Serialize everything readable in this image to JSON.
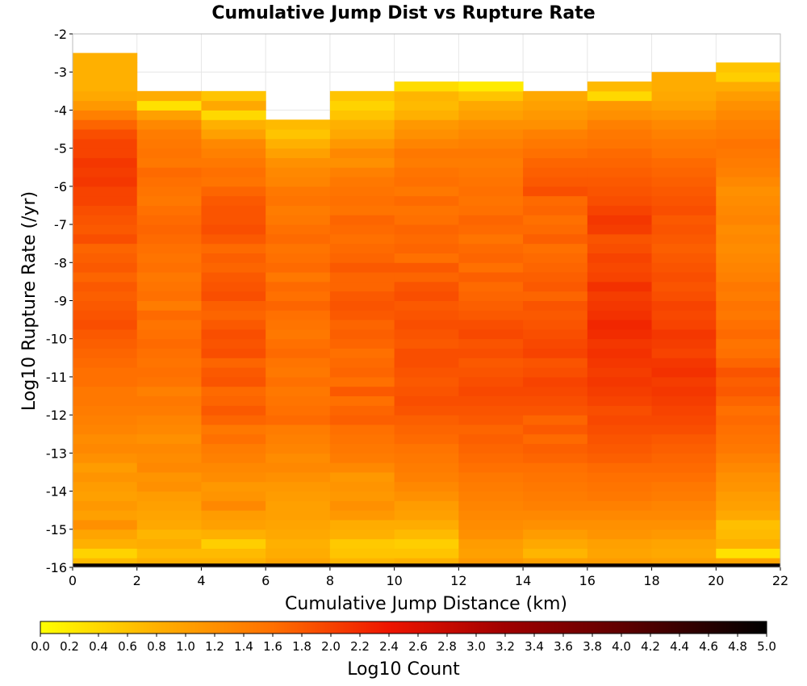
{
  "chart_data": {
    "type": "heatmap",
    "title": "Cumulative Jump Dist vs Rupture Rate",
    "xlabel": "Cumulative Jump Distance (km)",
    "ylabel": "Log10 Rupture Rate (/yr)",
    "xlim": [
      0,
      22
    ],
    "ylim": [
      -16,
      -2
    ],
    "x_ticks": [
      0,
      2,
      4,
      6,
      8,
      10,
      12,
      14,
      16,
      18,
      20,
      22
    ],
    "y_ticks": [
      -16,
      -15,
      -14,
      -13,
      -12,
      -11,
      -10,
      -9,
      -8,
      -7,
      -6,
      -5,
      -4,
      -3,
      -2
    ],
    "x_bin_edges": [
      0,
      2,
      4,
      6,
      8,
      10,
      12,
      14,
      16,
      18,
      20,
      22
    ],
    "y_bin_width": 0.25,
    "y_bins_start": -15.875,
    "values_note": "values[i][j] = Log10 Count for x bin i and y bin j (j=0 at -15.875, step 0.25); null = empty",
    "values": [
      [
        0.7,
        0.45,
        0.8,
        0.95,
        1.2,
        1.0,
        1.1,
        1.0,
        1.05,
        1.15,
        1.05,
        1.2,
        1.3,
        1.25,
        1.35,
        1.4,
        1.45,
        1.5,
        1.5,
        1.6,
        1.6,
        1.65,
        1.7,
        1.75,
        1.8,
        1.9,
        1.85,
        1.8,
        1.75,
        1.8,
        1.7,
        1.8,
        1.75,
        1.7,
        1.9,
        1.8,
        1.85,
        1.9,
        2.0,
        2.0,
        2.1,
        2.05,
        2.1,
        2.0,
        2.0,
        1.9,
        1.7,
        1.4,
        1.1,
        0.9,
        0.8,
        0.8,
        0.8,
        0.8,
        null,
        null,
        null,
        null,
        null,
        null
      ],
      [
        0.8,
        0.7,
        0.85,
        0.75,
        0.9,
        0.95,
        1.0,
        1.05,
        1.2,
        1.15,
        1.3,
        1.25,
        1.3,
        1.2,
        1.3,
        1.35,
        1.45,
        1.5,
        1.4,
        1.55,
        1.6,
        1.55,
        1.6,
        1.65,
        1.6,
        1.55,
        1.65,
        1.45,
        1.6,
        1.55,
        1.5,
        1.6,
        1.55,
        1.6,
        1.65,
        1.7,
        1.65,
        1.6,
        1.5,
        1.55,
        1.6,
        1.65,
        1.5,
        1.55,
        1.5,
        1.45,
        1.3,
        1.0,
        0.3,
        0.85,
        null,
        null,
        null,
        null,
        null,
        null,
        null,
        null,
        null,
        null
      ],
      [
        0.8,
        0.7,
        0.5,
        0.8,
        1.0,
        1.05,
        1.3,
        1.15,
        1.1,
        1.25,
        1.3,
        1.4,
        1.45,
        1.6,
        1.5,
        1.7,
        1.8,
        1.7,
        1.65,
        1.85,
        1.8,
        1.7,
        1.9,
        1.85,
        1.9,
        1.8,
        1.7,
        1.75,
        1.9,
        1.85,
        1.8,
        1.7,
        1.75,
        1.65,
        1.8,
        1.9,
        1.85,
        1.85,
        1.8,
        1.7,
        1.55,
        1.6,
        1.5,
        1.4,
        1.3,
        1.0,
        0.8,
        0.4,
        0.9,
        0.6,
        null,
        null,
        null,
        null,
        null,
        null,
        null,
        null,
        null,
        null
      ],
      [
        0.95,
        0.85,
        0.8,
        0.9,
        0.95,
        1.0,
        1.0,
        1.05,
        1.1,
        1.2,
        1.3,
        1.25,
        1.35,
        1.4,
        1.45,
        1.65,
        1.6,
        1.55,
        1.5,
        1.6,
        1.5,
        1.55,
        1.65,
        1.6,
        1.5,
        1.55,
        1.6,
        1.7,
        1.6,
        1.65,
        1.5,
        1.65,
        1.6,
        1.55,
        1.65,
        1.6,
        1.5,
        1.45,
        1.55,
        1.5,
        1.35,
        1.3,
        1.2,
        1.0,
        0.8,
        0.6,
        0.7,
        null,
        null,
        null,
        null,
        null,
        null,
        null,
        null,
        null,
        null,
        null,
        null,
        null
      ],
      [
        0.75,
        0.6,
        0.55,
        0.8,
        0.85,
        1.1,
        1.2,
        1.1,
        1.15,
        1.1,
        1.3,
        1.45,
        1.5,
        1.55,
        1.6,
        1.75,
        1.7,
        1.6,
        1.8,
        1.6,
        1.7,
        1.65,
        1.6,
        1.7,
        1.75,
        1.7,
        1.8,
        1.85,
        1.8,
        1.7,
        1.7,
        1.8,
        1.7,
        1.65,
        1.6,
        1.65,
        1.7,
        1.55,
        1.6,
        1.55,
        1.5,
        1.4,
        1.2,
        1.3,
        1.1,
        0.9,
        0.8,
        0.6,
        0.45,
        0.6,
        null,
        null,
        null,
        null,
        null,
        null,
        null,
        null,
        null,
        null
      ],
      [
        0.8,
        0.6,
        0.5,
        0.7,
        0.85,
        1.0,
        1.05,
        1.2,
        1.3,
        1.4,
        1.45,
        1.5,
        1.55,
        1.65,
        1.7,
        1.75,
        1.85,
        1.9,
        1.85,
        1.8,
        1.85,
        1.9,
        1.9,
        1.8,
        1.85,
        1.9,
        1.85,
        1.8,
        1.9,
        1.85,
        1.7,
        1.8,
        1.6,
        1.7,
        1.65,
        1.7,
        1.6,
        1.55,
        1.65,
        1.5,
        1.6,
        1.55,
        1.45,
        1.5,
        1.35,
        1.2,
        1.1,
        0.8,
        0.7,
        0.75,
        0.35,
        null,
        null,
        null,
        null,
        null,
        null,
        null,
        null,
        null
      ],
      [
        1.1,
        1.0,
        1.05,
        1.2,
        1.25,
        1.3,
        1.35,
        1.4,
        1.45,
        1.5,
        1.6,
        1.65,
        1.7,
        1.75,
        1.7,
        1.8,
        1.85,
        1.9,
        1.95,
        1.9,
        1.85,
        1.8,
        1.9,
        1.85,
        1.95,
        1.9,
        1.8,
        1.75,
        1.7,
        1.65,
        1.75,
        1.6,
        1.7,
        1.65,
        1.55,
        1.65,
        1.7,
        1.6,
        1.55,
        1.6,
        1.55,
        1.5,
        1.45,
        1.5,
        1.4,
        1.3,
        1.2,
        1.0,
        0.9,
        0.6,
        0.2,
        null,
        null,
        null,
        null,
        null,
        null,
        null,
        null,
        null
      ],
      [
        1.0,
        0.75,
        0.9,
        1.05,
        1.2,
        1.3,
        1.4,
        1.45,
        1.5,
        1.55,
        1.6,
        1.7,
        1.75,
        1.65,
        1.8,
        1.7,
        1.85,
        1.9,
        1.95,
        2.0,
        1.9,
        1.85,
        2.0,
        1.95,
        1.9,
        1.85,
        1.8,
        1.85,
        1.7,
        1.8,
        1.75,
        1.7,
        1.65,
        1.6,
        1.75,
        1.65,
        1.6,
        1.7,
        1.65,
        1.9,
        1.8,
        1.75,
        1.7,
        1.6,
        1.5,
        1.4,
        1.2,
        1.1,
        1.0,
        0.9,
        null,
        null,
        null,
        null,
        null,
        null,
        null,
        null,
        null,
        null
      ],
      [
        1.05,
        0.95,
        1.0,
        1.15,
        1.2,
        1.3,
        1.4,
        1.5,
        1.55,
        1.6,
        1.65,
        1.75,
        1.8,
        1.85,
        1.9,
        1.95,
        1.9,
        2.0,
        2.05,
        2.1,
        2.05,
        2.1,
        2.15,
        2.1,
        2.2,
        2.25,
        2.15,
        2.1,
        2.05,
        2.15,
        2.0,
        1.95,
        2.0,
        1.9,
        1.85,
        2.05,
        2.1,
        2.0,
        1.9,
        1.85,
        1.8,
        1.75,
        1.7,
        1.65,
        1.55,
        1.5,
        1.4,
        1.2,
        1.1,
        0.4,
        0.7,
        null,
        null,
        null,
        null,
        null,
        null,
        null,
        null,
        null
      ],
      [
        1.0,
        0.9,
        0.95,
        1.1,
        1.2,
        1.3,
        1.35,
        1.45,
        1.5,
        1.6,
        1.65,
        1.7,
        1.75,
        1.8,
        1.9,
        1.95,
        2.0,
        2.05,
        2.1,
        2.05,
        2.15,
        2.1,
        2.0,
        2.05,
        2.1,
        2.0,
        1.95,
        2.0,
        1.9,
        1.85,
        1.9,
        1.85,
        1.8,
        1.75,
        1.8,
        1.85,
        1.8,
        1.9,
        1.85,
        1.8,
        1.75,
        1.7,
        1.65,
        1.55,
        1.5,
        1.4,
        1.3,
        1.15,
        1.0,
        0.9,
        0.85,
        0.85,
        null,
        null,
        null,
        null,
        null,
        null,
        null,
        null
      ],
      [
        0.95,
        0.3,
        0.8,
        0.7,
        0.65,
        0.9,
        1.0,
        1.05,
        1.15,
        1.2,
        1.3,
        1.4,
        1.5,
        1.55,
        1.6,
        1.65,
        1.6,
        1.7,
        1.8,
        1.75,
        1.85,
        1.7,
        1.6,
        1.55,
        1.65,
        1.6,
        1.5,
        1.55,
        1.45,
        1.5,
        1.4,
        1.35,
        1.3,
        1.25,
        1.3,
        1.25,
        1.35,
        1.3,
        1.25,
        1.2,
        1.3,
        1.4,
        1.45,
        1.5,
        1.55,
        1.45,
        1.4,
        1.3,
        1.2,
        1.05,
        0.85,
        0.5,
        0.6,
        null,
        null,
        null,
        null,
        null,
        null,
        null
      ]
    ],
    "special_rows": [
      {
        "y_range": [
          -16,
          -15.9
        ],
        "value": 4.9,
        "note": "lowest rate row, all x bins"
      }
    ],
    "colorbar": {
      "label": "Log10 Count",
      "range": [
        0.0,
        5.0
      ],
      "ticks": [
        "0.0",
        "0.2",
        "0.4",
        "0.6",
        "0.8",
        "1.0",
        "1.2",
        "1.4",
        "1.6",
        "1.8",
        "2.0",
        "2.2",
        "2.4",
        "2.6",
        "2.8",
        "3.0",
        "3.2",
        "3.4",
        "3.6",
        "3.8",
        "4.0",
        "4.2",
        "4.4",
        "4.6",
        "4.8",
        "5.0"
      ],
      "stops": [
        {
          "v": 0.0,
          "color": "#ffff00"
        },
        {
          "v": 0.8,
          "color": "#ffb000"
        },
        {
          "v": 1.6,
          "color": "#ff7000"
        },
        {
          "v": 2.4,
          "color": "#ee1500"
        },
        {
          "v": 3.2,
          "color": "#a00000"
        },
        {
          "v": 4.0,
          "color": "#600000"
        },
        {
          "v": 5.0,
          "color": "#000000"
        }
      ]
    },
    "grid": true
  }
}
